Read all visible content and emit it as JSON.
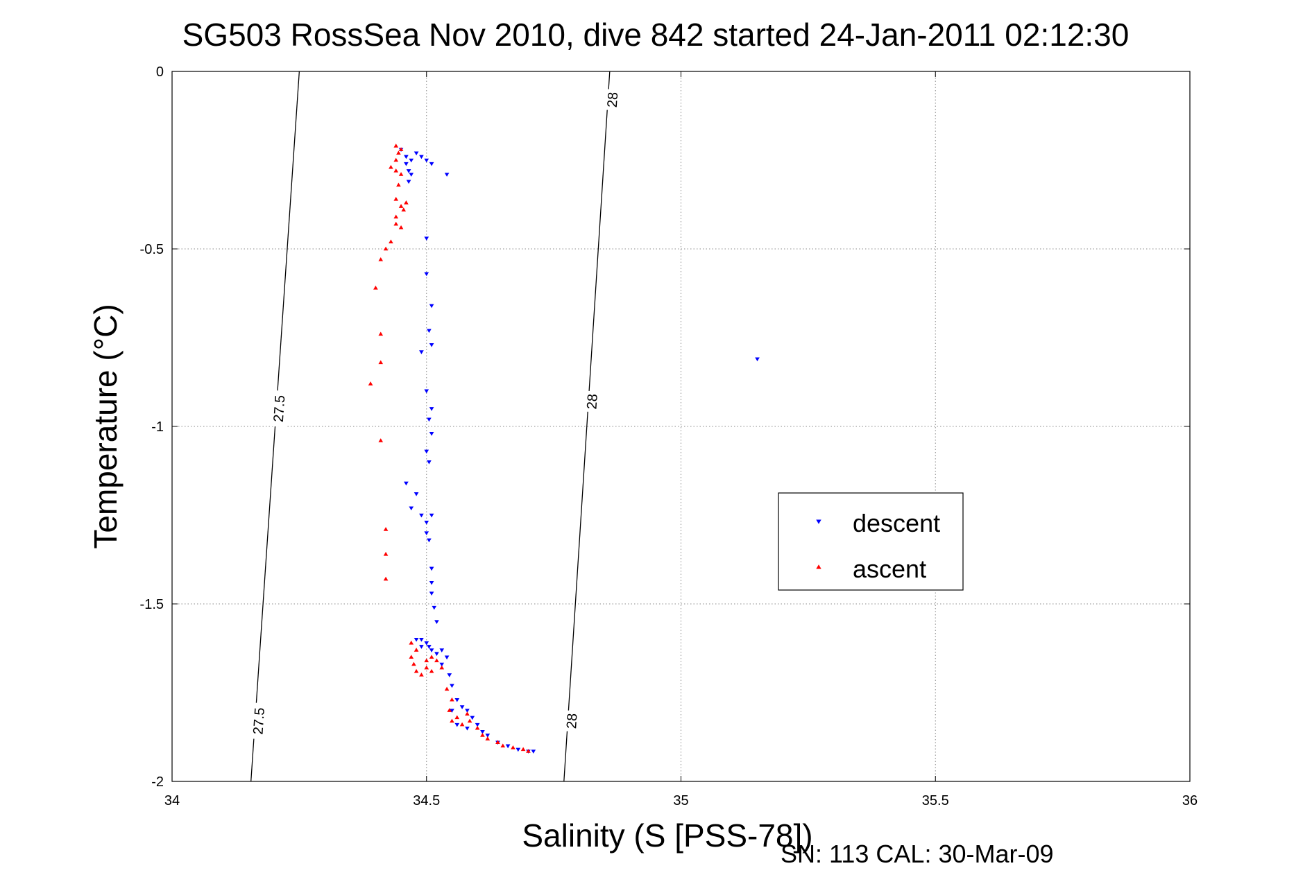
{
  "chart_data": {
    "type": "scatter",
    "title": "SG503 RossSea Nov 2010, dive 842 started 24-Jan-2011 02:12:30",
    "xlabel": "Salinity (S [PSS-78])",
    "ylabel": "Temperature (°C)",
    "footer": "SN: 113  CAL: 30-Mar-09",
    "xlim": [
      34,
      36
    ],
    "ylim": [
      -2,
      0
    ],
    "xticks": [
      34,
      34.5,
      35,
      35.5,
      36
    ],
    "xtick_labels": [
      "34",
      "34.5",
      "35",
      "35.5",
      "36"
    ],
    "yticks": [
      0,
      -0.5,
      -1,
      -1.5,
      -2
    ],
    "ytick_labels": [
      "0",
      "-0.5",
      "-1",
      "-1.5",
      "-2"
    ],
    "grid": true,
    "legend_position": "center-right",
    "density_contours": [
      {
        "label": "27.5",
        "points": [
          [
            34.25,
            0
          ],
          [
            34.155,
            -2
          ]
        ],
        "label_positions": [
          [
            34.21,
            -0.95
          ],
          [
            34.17,
            -1.83
          ]
        ]
      },
      {
        "label": "28",
        "points": [
          [
            34.86,
            0
          ],
          [
            34.77,
            -2
          ]
        ],
        "label_positions": [
          [
            34.865,
            -0.08
          ],
          [
            34.825,
            -0.93
          ],
          [
            34.785,
            -1.83
          ]
        ]
      }
    ],
    "series": [
      {
        "name": "descent",
        "color": "#0000ff",
        "marker": "triangle-down",
        "points": [
          [
            34.45,
            -0.22
          ],
          [
            34.46,
            -0.24
          ],
          [
            34.47,
            -0.25
          ],
          [
            34.48,
            -0.23
          ],
          [
            34.49,
            -0.24
          ],
          [
            34.5,
            -0.25
          ],
          [
            34.51,
            -0.26
          ],
          [
            34.54,
            -0.29
          ],
          [
            34.46,
            -0.26
          ],
          [
            34.465,
            -0.28
          ],
          [
            34.47,
            -0.29
          ],
          [
            34.465,
            -0.31
          ],
          [
            34.5,
            -0.47
          ],
          [
            34.5,
            -0.57
          ],
          [
            34.51,
            -0.66
          ],
          [
            34.505,
            -0.73
          ],
          [
            34.51,
            -0.77
          ],
          [
            34.49,
            -0.79
          ],
          [
            34.5,
            -0.9
          ],
          [
            34.51,
            -0.95
          ],
          [
            34.505,
            -0.98
          ],
          [
            34.51,
            -1.02
          ],
          [
            34.5,
            -1.07
          ],
          [
            34.505,
            -1.1
          ],
          [
            34.46,
            -1.16
          ],
          [
            34.48,
            -1.19
          ],
          [
            34.47,
            -1.23
          ],
          [
            34.49,
            -1.25
          ],
          [
            34.51,
            -1.25
          ],
          [
            34.5,
            -1.27
          ],
          [
            34.5,
            -1.3
          ],
          [
            34.505,
            -1.32
          ],
          [
            34.51,
            -1.4
          ],
          [
            34.51,
            -1.44
          ],
          [
            34.51,
            -1.47
          ],
          [
            34.515,
            -1.51
          ],
          [
            34.52,
            -1.55
          ],
          [
            34.48,
            -1.6
          ],
          [
            34.49,
            -1.6
          ],
          [
            34.5,
            -1.61
          ],
          [
            34.49,
            -1.62
          ],
          [
            34.505,
            -1.62
          ],
          [
            34.51,
            -1.63
          ],
          [
            34.52,
            -1.64
          ],
          [
            34.53,
            -1.63
          ],
          [
            34.54,
            -1.65
          ],
          [
            34.53,
            -1.67
          ],
          [
            34.545,
            -1.7
          ],
          [
            34.55,
            -1.73
          ],
          [
            34.56,
            -1.77
          ],
          [
            34.55,
            -1.8
          ],
          [
            34.57,
            -1.79
          ],
          [
            34.58,
            -1.8
          ],
          [
            34.59,
            -1.82
          ],
          [
            34.6,
            -1.84
          ],
          [
            34.61,
            -1.86
          ],
          [
            34.56,
            -1.84
          ],
          [
            34.58,
            -1.85
          ],
          [
            34.62,
            -1.87
          ],
          [
            34.64,
            -1.89
          ],
          [
            34.66,
            -1.9
          ],
          [
            34.68,
            -1.91
          ],
          [
            34.7,
            -1.915
          ],
          [
            34.71,
            -1.915
          ],
          [
            35.15,
            -0.81
          ]
        ]
      },
      {
        "name": "ascent",
        "color": "#ff0000",
        "marker": "triangle-up",
        "points": [
          [
            34.44,
            -0.21
          ],
          [
            34.445,
            -0.23
          ],
          [
            34.45,
            -0.22
          ],
          [
            34.44,
            -0.25
          ],
          [
            34.43,
            -0.27
          ],
          [
            34.44,
            -0.28
          ],
          [
            34.45,
            -0.29
          ],
          [
            34.445,
            -0.32
          ],
          [
            34.44,
            -0.36
          ],
          [
            34.45,
            -0.38
          ],
          [
            34.46,
            -0.37
          ],
          [
            34.455,
            -0.39
          ],
          [
            34.44,
            -0.41
          ],
          [
            34.44,
            -0.43
          ],
          [
            34.45,
            -0.44
          ],
          [
            34.43,
            -0.48
          ],
          [
            34.42,
            -0.5
          ],
          [
            34.41,
            -0.53
          ],
          [
            34.4,
            -0.61
          ],
          [
            34.41,
            -0.74
          ],
          [
            34.41,
            -0.82
          ],
          [
            34.39,
            -0.88
          ],
          [
            34.41,
            -1.04
          ],
          [
            34.42,
            -1.29
          ],
          [
            34.42,
            -1.36
          ],
          [
            34.42,
            -1.43
          ],
          [
            34.47,
            -1.61
          ],
          [
            34.48,
            -1.63
          ],
          [
            34.47,
            -1.65
          ],
          [
            34.475,
            -1.67
          ],
          [
            34.48,
            -1.69
          ],
          [
            34.49,
            -1.7
          ],
          [
            34.5,
            -1.66
          ],
          [
            34.51,
            -1.65
          ],
          [
            34.52,
            -1.66
          ],
          [
            34.53,
            -1.68
          ],
          [
            34.5,
            -1.68
          ],
          [
            34.51,
            -1.69
          ],
          [
            34.54,
            -1.74
          ],
          [
            34.55,
            -1.77
          ],
          [
            34.545,
            -1.8
          ],
          [
            34.56,
            -1.82
          ],
          [
            34.55,
            -1.83
          ],
          [
            34.57,
            -1.84
          ],
          [
            34.58,
            -1.81
          ],
          [
            34.585,
            -1.83
          ],
          [
            34.6,
            -1.85
          ],
          [
            34.61,
            -1.87
          ],
          [
            34.62,
            -1.88
          ],
          [
            34.64,
            -1.89
          ],
          [
            34.65,
            -1.9
          ],
          [
            34.67,
            -1.905
          ],
          [
            34.69,
            -1.91
          ],
          [
            34.7,
            -1.915
          ]
        ]
      }
    ]
  }
}
